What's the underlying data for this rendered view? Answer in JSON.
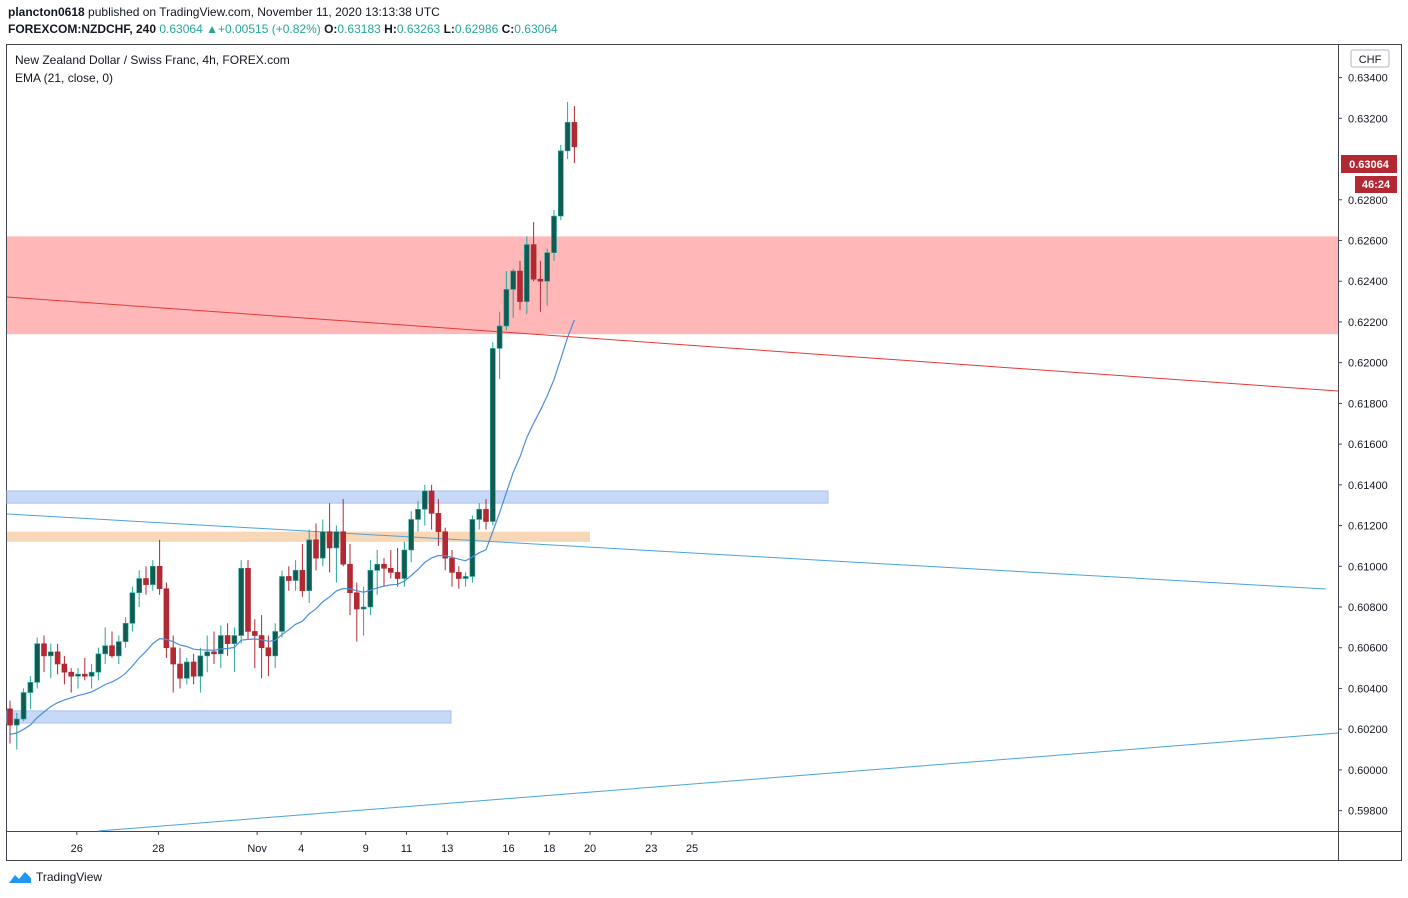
{
  "header": {
    "publisher": "plancton0618",
    "published_text": "published on TradingView.com, November 11, 2020 13:13:38 UTC",
    "symbol_line": "FOREXCOM:NZDCHF, 240",
    "last": "0.63064",
    "change_text": "+0.00515 (+0.82%)",
    "o_label": "O:",
    "o_value": "0.63183",
    "h_label": "H:",
    "h_value": "0.63263",
    "l_label": "L:",
    "l_value": "0.62986",
    "c_label": "C:",
    "c_value": "0.63064"
  },
  "legend": {
    "title": "New Zealand Dollar / Swiss Franc, 4h, FOREX.com",
    "indicator": "EMA (21, close, 0)"
  },
  "footer": {
    "brand": "TradingView"
  },
  "colors": {
    "up": "#26a69a",
    "up_body": "#125b53",
    "down": "#b22833",
    "ema": "#4a90d9",
    "red_zone": "#ffb7b7",
    "blue_zone": "#c7d9f6",
    "orange_zone": "#f8d7b6",
    "red_line": "#e53935",
    "blue_line": "#4aa3df"
  },
  "chart_data": {
    "type": "candlestick",
    "currency": "CHF",
    "y_range": [
      0.597,
      0.6356
    ],
    "y_ticks": [
      "0.63400",
      "0.63200",
      "0.62800",
      "0.62600",
      "0.62400",
      "0.62200",
      "0.62000",
      "0.61800",
      "0.61600",
      "0.61400",
      "0.61200",
      "0.61000",
      "0.60800",
      "0.60600",
      "0.60400",
      "0.60200",
      "0.60000",
      "0.59800"
    ],
    "x_ticks": [
      {
        "label": "26",
        "day_index": 1
      },
      {
        "label": "28",
        "day_index": 3
      },
      {
        "label": "Nov",
        "day_index": 5.42
      },
      {
        "label": "4",
        "day_index": 6.5
      },
      {
        "label": "9",
        "day_index": 8.08
      },
      {
        "label": "11",
        "day_index": 9.08
      },
      {
        "label": "13",
        "day_index": 10.08
      },
      {
        "label": "16",
        "day_index": 11.58
      },
      {
        "label": "18",
        "day_index": 12.58
      },
      {
        "label": "20",
        "day_index": 13.58
      },
      {
        "label": "23",
        "day_index": 15.08
      },
      {
        "label": "25",
        "day_index": 16.08
      }
    ],
    "last_price_label": "0.63064",
    "countdown_label": "46:24",
    "candles": [
      [
        0.603,
        0.6034,
        0.6013,
        0.6022
      ],
      [
        0.6022,
        0.6028,
        0.601,
        0.6025
      ],
      [
        0.6025,
        0.604,
        0.6024,
        0.6038
      ],
      [
        0.6038,
        0.6046,
        0.603,
        0.6043
      ],
      [
        0.6043,
        0.6065,
        0.604,
        0.6062
      ],
      [
        0.6062,
        0.6066,
        0.6048,
        0.6056
      ],
      [
        0.6056,
        0.6062,
        0.6045,
        0.6058
      ],
      [
        0.6058,
        0.6062,
        0.6047,
        0.6052
      ],
      [
        0.6052,
        0.6056,
        0.6042,
        0.6048
      ],
      [
        0.6048,
        0.605,
        0.6038,
        0.6046
      ],
      [
        0.6046,
        0.605,
        0.604,
        0.6047
      ],
      [
        0.6047,
        0.6055,
        0.6044,
        0.6046
      ],
      [
        0.6046,
        0.6052,
        0.604,
        0.6048
      ],
      [
        0.6048,
        0.606,
        0.6044,
        0.6057
      ],
      [
        0.6057,
        0.607,
        0.6052,
        0.6061
      ],
      [
        0.6061,
        0.6068,
        0.6055,
        0.6056
      ],
      [
        0.6056,
        0.6066,
        0.6052,
        0.6063
      ],
      [
        0.6063,
        0.6075,
        0.606,
        0.6072
      ],
      [
        0.6072,
        0.609,
        0.6068,
        0.6087
      ],
      [
        0.6087,
        0.6098,
        0.608,
        0.6094
      ],
      [
        0.6094,
        0.61,
        0.6086,
        0.6091
      ],
      [
        0.6091,
        0.6103,
        0.6088,
        0.61
      ],
      [
        0.61,
        0.6113,
        0.6086,
        0.6089
      ],
      [
        0.6089,
        0.6092,
        0.6055,
        0.606
      ],
      [
        0.606,
        0.6066,
        0.6038,
        0.6052
      ],
      [
        0.6052,
        0.606,
        0.604,
        0.6045
      ],
      [
        0.6045,
        0.6055,
        0.6042,
        0.6053
      ],
      [
        0.6053,
        0.6057,
        0.6042,
        0.6046
      ],
      [
        0.6046,
        0.606,
        0.6038,
        0.6056
      ],
      [
        0.6056,
        0.6066,
        0.6048,
        0.6058
      ],
      [
        0.6058,
        0.6068,
        0.6052,
        0.6057
      ],
      [
        0.6057,
        0.6071,
        0.605,
        0.6066
      ],
      [
        0.6066,
        0.6072,
        0.6056,
        0.6062
      ],
      [
        0.6062,
        0.607,
        0.6048,
        0.6066
      ],
      [
        0.6066,
        0.6103,
        0.6062,
        0.6099
      ],
      [
        0.6099,
        0.6103,
        0.6064,
        0.6068
      ],
      [
        0.6068,
        0.6074,
        0.605,
        0.6066
      ],
      [
        0.6066,
        0.6076,
        0.6045,
        0.606
      ],
      [
        0.606,
        0.6066,
        0.6046,
        0.6056
      ],
      [
        0.6056,
        0.6072,
        0.605,
        0.6068
      ],
      [
        0.6068,
        0.6098,
        0.6065,
        0.6095
      ],
      [
        0.6095,
        0.61,
        0.6088,
        0.6093
      ],
      [
        0.6093,
        0.6103,
        0.6088,
        0.6098
      ],
      [
        0.6098,
        0.6111,
        0.6085,
        0.6088
      ],
      [
        0.6088,
        0.6118,
        0.6082,
        0.6113
      ],
      [
        0.6113,
        0.6121,
        0.6098,
        0.6104
      ],
      [
        0.6104,
        0.6123,
        0.61,
        0.6117
      ],
      [
        0.6117,
        0.6131,
        0.6097,
        0.6109
      ],
      [
        0.6109,
        0.612,
        0.6092,
        0.6117
      ],
      [
        0.6117,
        0.6133,
        0.61,
        0.6101
      ],
      [
        0.6101,
        0.6111,
        0.6076,
        0.6087
      ],
      [
        0.6087,
        0.6092,
        0.6063,
        0.6079
      ],
      [
        0.6079,
        0.609,
        0.6066,
        0.608
      ],
      [
        0.608,
        0.6103,
        0.6076,
        0.6098
      ],
      [
        0.6098,
        0.6108,
        0.6086,
        0.6101
      ],
      [
        0.6101,
        0.6104,
        0.609,
        0.6099
      ],
      [
        0.6099,
        0.6108,
        0.6094,
        0.6097
      ],
      [
        0.6097,
        0.6109,
        0.609,
        0.6094
      ],
      [
        0.6094,
        0.6112,
        0.609,
        0.6108
      ],
      [
        0.6108,
        0.6127,
        0.6102,
        0.6123
      ],
      [
        0.6123,
        0.6132,
        0.6117,
        0.6128
      ],
      [
        0.6128,
        0.614,
        0.612,
        0.6137
      ],
      [
        0.6137,
        0.614,
        0.6118,
        0.6126
      ],
      [
        0.6126,
        0.6133,
        0.611,
        0.6117
      ],
      [
        0.6117,
        0.6119,
        0.6098,
        0.6104
      ],
      [
        0.6104,
        0.6108,
        0.609,
        0.6097
      ],
      [
        0.6097,
        0.61,
        0.6089,
        0.6094
      ],
      [
        0.6094,
        0.6097,
        0.609,
        0.6095
      ],
      [
        0.6095,
        0.6125,
        0.6092,
        0.6123
      ],
      [
        0.6123,
        0.6131,
        0.6118,
        0.6128
      ],
      [
        0.6128,
        0.6133,
        0.6118,
        0.6122
      ],
      [
        0.6122,
        0.621,
        0.612,
        0.6207
      ],
      [
        0.6207,
        0.6225,
        0.6192,
        0.6218
      ],
      [
        0.6218,
        0.6245,
        0.6216,
        0.6236
      ],
      [
        0.6236,
        0.6246,
        0.6222,
        0.6245
      ],
      [
        0.6245,
        0.625,
        0.6226,
        0.623
      ],
      [
        0.623,
        0.6262,
        0.6224,
        0.6258
      ],
      [
        0.6258,
        0.6269,
        0.624,
        0.6241
      ],
      [
        0.6241,
        0.625,
        0.6225,
        0.624
      ],
      [
        0.624,
        0.6256,
        0.6228,
        0.6254
      ],
      [
        0.6254,
        0.6275,
        0.625,
        0.6272
      ],
      [
        0.6272,
        0.6307,
        0.627,
        0.6304
      ],
      [
        0.6304,
        0.6328,
        0.63,
        0.6318
      ],
      [
        0.6318,
        0.6326,
        0.6298,
        0.6306
      ]
    ],
    "zones": [
      {
        "color": "red_zone",
        "from": 0.6214,
        "to": 0.6262
      },
      {
        "color": "blue_zone",
        "from": 0.6131,
        "to": 0.6137
      },
      {
        "color": "orange_zone",
        "from": 0.6112,
        "to": 0.6117
      },
      {
        "color": "blue_zone",
        "from": 0.6023,
        "to": 0.6029
      }
    ]
  }
}
